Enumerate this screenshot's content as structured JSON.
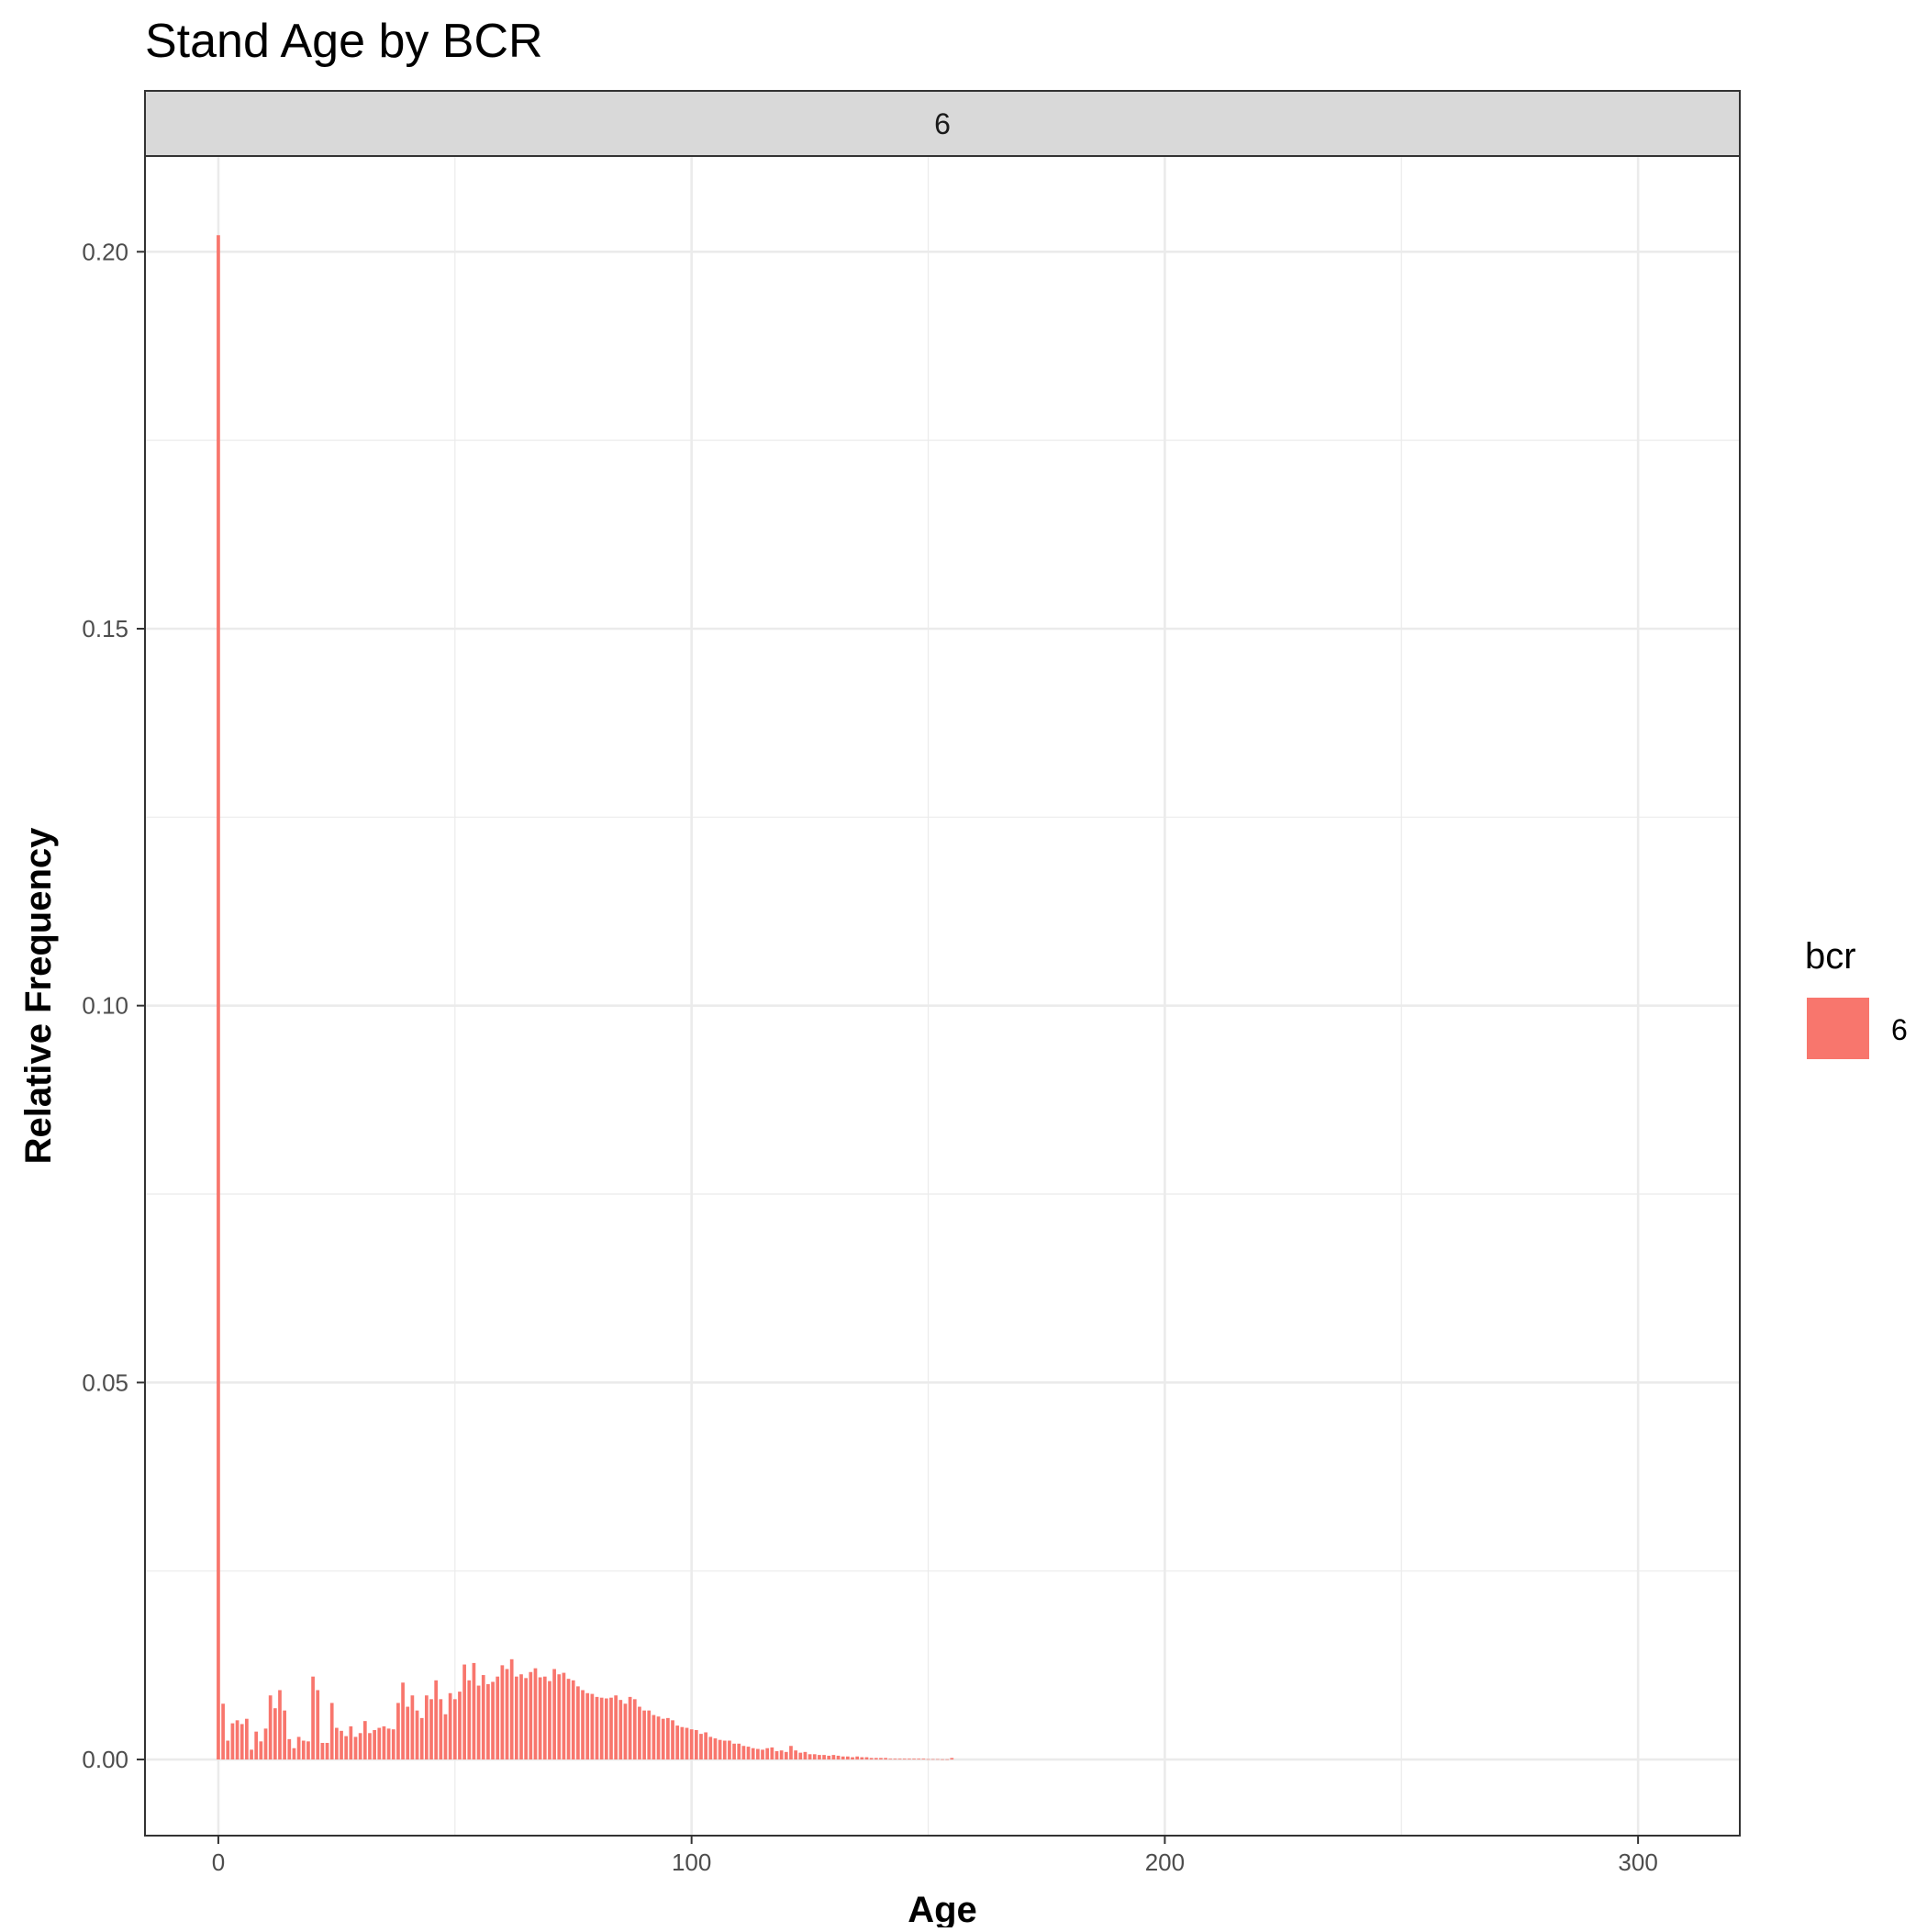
{
  "chart_data": {
    "type": "bar",
    "title": "Stand Age by BCR",
    "facet_label": "6",
    "xlabel": "Age",
    "ylabel": "Relative Frequency",
    "xlim": [
      -15.5,
      321.5
    ],
    "ylim": [
      -0.0101,
      0.2127
    ],
    "x_ticks": [
      0,
      100,
      200,
      300
    ],
    "x_tick_labels": [
      "0",
      "100",
      "200",
      "300"
    ],
    "x_minor_ticks": [
      50,
      150,
      250
    ],
    "y_ticks": [
      0,
      0.05,
      0.1,
      0.15,
      0.2
    ],
    "y_tick_labels": [
      "0.00",
      "0.05",
      "0.10",
      "0.15",
      "0.20"
    ],
    "y_minor_ticks": [
      0.025,
      0.075,
      0.125,
      0.175
    ],
    "grid": true,
    "legend": {
      "title": "bcr",
      "position": "right",
      "entries": [
        {
          "label": "6",
          "color": "#F8766D"
        }
      ]
    },
    "bar_color": "#F8766D",
    "panel_border_color": "#333333",
    "strip_fill": "#D9D9D9",
    "series": [
      {
        "name": "6",
        "x": [
          0,
          1,
          2,
          3,
          4,
          5,
          6,
          7,
          8,
          9,
          10,
          11,
          12,
          13,
          14,
          15,
          16,
          17,
          18,
          19,
          20,
          21,
          22,
          23,
          24,
          25,
          26,
          27,
          28,
          29,
          30,
          31,
          32,
          33,
          34,
          35,
          36,
          37,
          38,
          39,
          40,
          41,
          42,
          43,
          44,
          45,
          46,
          47,
          48,
          49,
          50,
          51,
          52,
          53,
          54,
          55,
          56,
          57,
          58,
          59,
          60,
          61,
          62,
          63,
          64,
          65,
          66,
          67,
          68,
          69,
          70,
          71,
          72,
          73,
          74,
          75,
          76,
          77,
          78,
          79,
          80,
          81,
          82,
          83,
          84,
          85,
          86,
          87,
          88,
          89,
          90,
          91,
          92,
          93,
          94,
          95,
          96,
          97,
          98,
          99,
          100,
          101,
          102,
          103,
          104,
          105,
          106,
          107,
          108,
          109,
          110,
          111,
          112,
          113,
          114,
          115,
          116,
          117,
          118,
          119,
          120,
          121,
          122,
          123,
          124,
          125,
          126,
          127,
          128,
          129,
          130,
          131,
          132,
          133,
          134,
          135,
          136,
          137,
          138,
          139,
          140,
          141,
          142,
          143,
          144,
          145,
          146,
          147,
          148,
          149,
          150,
          151,
          152,
          153,
          154,
          155
        ],
        "values": [
          0.2022,
          0.0074,
          0.0025,
          0.0048,
          0.0052,
          0.0047,
          0.0054,
          0.0013,
          0.0037,
          0.0024,
          0.0041,
          0.0085,
          0.0068,
          0.0092,
          0.0065,
          0.0027,
          0.0015,
          0.003,
          0.0025,
          0.0024,
          0.011,
          0.0092,
          0.0022,
          0.0022,
          0.0075,
          0.0042,
          0.0038,
          0.0031,
          0.0044,
          0.003,
          0.0035,
          0.0051,
          0.0035,
          0.0039,
          0.0042,
          0.0044,
          0.0041,
          0.004,
          0.0075,
          0.0102,
          0.007,
          0.0085,
          0.0065,
          0.0055,
          0.0085,
          0.008,
          0.0105,
          0.008,
          0.006,
          0.0088,
          0.008,
          0.009,
          0.0126,
          0.0105,
          0.0128,
          0.0098,
          0.0112,
          0.01,
          0.0103,
          0.011,
          0.0125,
          0.012,
          0.0133,
          0.011,
          0.0113,
          0.0108,
          0.0116,
          0.0121,
          0.0109,
          0.011,
          0.0104,
          0.012,
          0.0113,
          0.0115,
          0.0107,
          0.0105,
          0.0097,
          0.0092,
          0.0088,
          0.0087,
          0.0083,
          0.0082,
          0.0081,
          0.0082,
          0.0085,
          0.0079,
          0.0074,
          0.0083,
          0.008,
          0.007,
          0.0065,
          0.0065,
          0.0059,
          0.0057,
          0.0054,
          0.0055,
          0.0052,
          0.0045,
          0.0043,
          0.0042,
          0.004,
          0.0039,
          0.0034,
          0.0036,
          0.003,
          0.0028,
          0.0026,
          0.0025,
          0.0025,
          0.0021,
          0.0021,
          0.0018,
          0.0017,
          0.0015,
          0.0014,
          0.0013,
          0.0015,
          0.0016,
          0.0011,
          0.0012,
          0.001,
          0.0018,
          0.0012,
          0.0009,
          0.001,
          0.0007,
          0.0007,
          0.0006,
          0.0006,
          0.0005,
          0.0006,
          0.0005,
          0.0004,
          0.0004,
          0.0003,
          0.0004,
          0.0003,
          0.0003,
          0.0002,
          0.0002,
          0.0002,
          0.0002,
          0.0001,
          0.0001,
          0.0001,
          0.0001,
          0.0001,
          0.0001,
          0.0001,
          0.0001,
          5e-05,
          5e-05,
          5e-05,
          3e-05,
          3e-05,
          0.0002
        ]
      }
    ]
  }
}
